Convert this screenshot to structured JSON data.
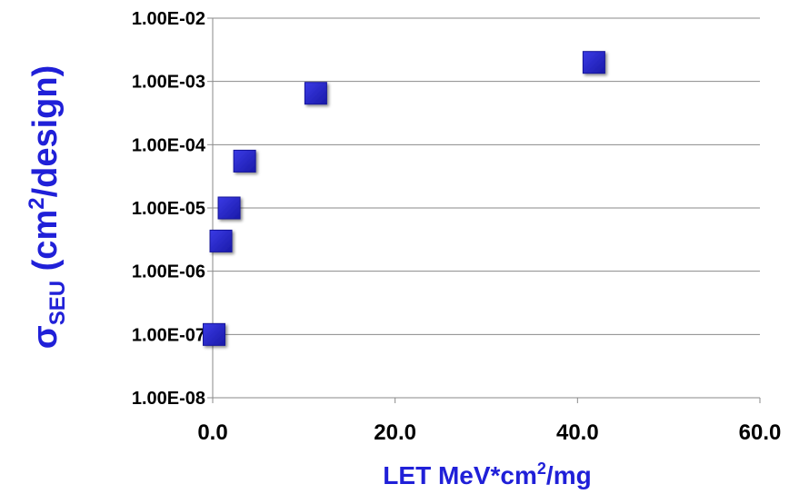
{
  "chart_data": {
    "type": "scatter",
    "x_scale": "linear",
    "y_scale": "log",
    "xlim": [
      0,
      60
    ],
    "ylim": [
      1e-08,
      0.01
    ],
    "x_ticks": [
      "0.0",
      "20.0",
      "40.0",
      "60.0"
    ],
    "y_ticks": [
      "1.00E-08",
      "1.00E-07",
      "1.00E-06",
      "1.00E-05",
      "1.00E-04",
      "1.00E-03",
      "1.00E-02"
    ],
    "xlabel": {
      "main": "LET MeV*cm",
      "sup": "2",
      "tail": "/mg"
    },
    "ylabel": {
      "sigma": "σ",
      "sub": "SEU",
      "main": " (cm",
      "sup": "2",
      "tail": "/design)"
    },
    "grid": "horizontal",
    "marker": "square",
    "marker_color": "#2222cc",
    "axis_title_color": "#2020d8",
    "series": [
      {
        "points": [
          {
            "x": 0.15,
            "y": 1e-07
          },
          {
            "x": 0.9,
            "y": 3e-06
          },
          {
            "x": 1.8,
            "y": 1e-05
          },
          {
            "x": 3.5,
            "y": 5.5e-05
          },
          {
            "x": 11.3,
            "y": 0.00065
          },
          {
            "x": 41.8,
            "y": 0.002
          }
        ]
      }
    ]
  }
}
